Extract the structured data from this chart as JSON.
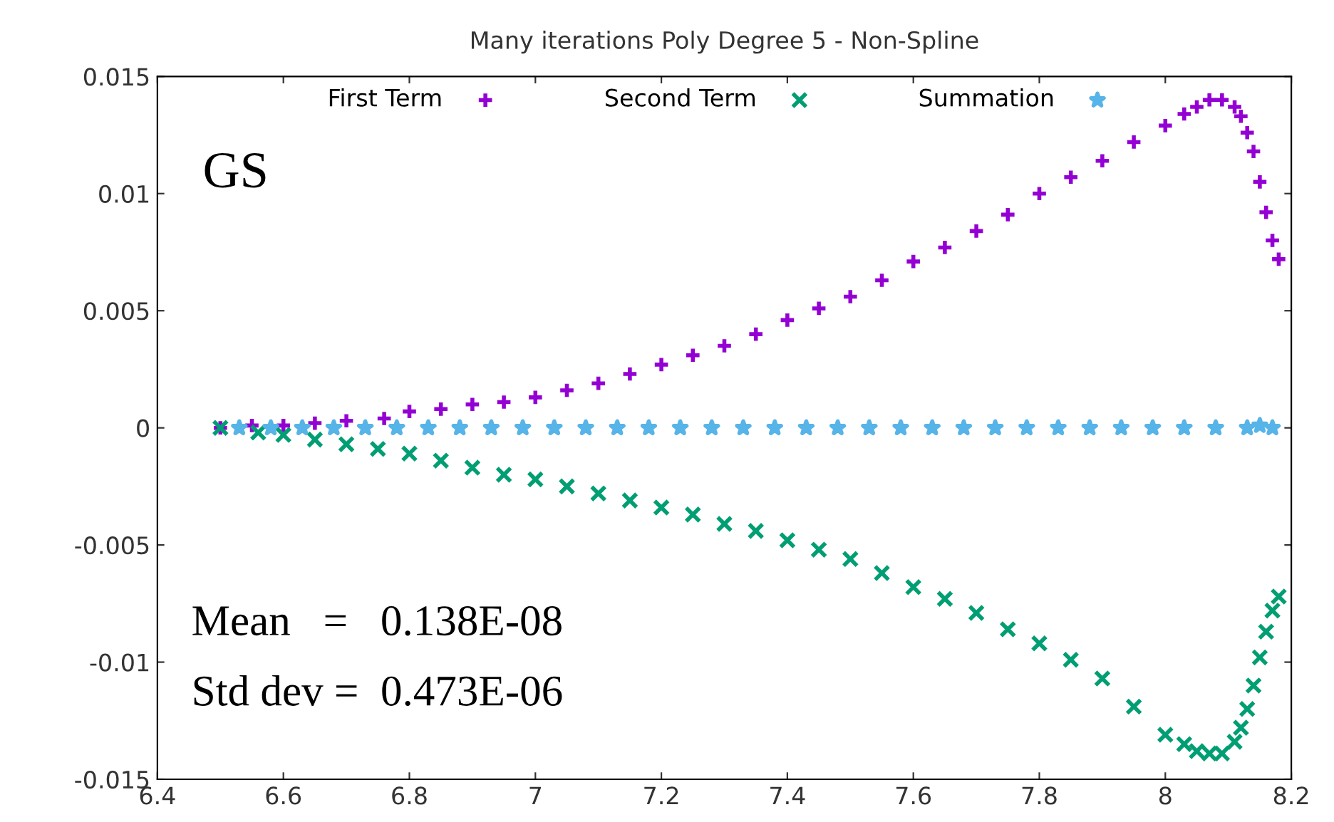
{
  "chart_data": {
    "type": "scatter",
    "title": "Many iterations Poly Degree 5 - Non-Spline",
    "series": [
      {
        "name": "First Term",
        "color": "#9400d3",
        "marker": "cross",
        "x": [
          6.5,
          6.55,
          6.6,
          6.65,
          6.7,
          6.76,
          6.8,
          6.85,
          6.9,
          6.95,
          7.0,
          7.05,
          7.1,
          7.15,
          7.2,
          7.25,
          7.3,
          7.35,
          7.4,
          7.45,
          7.5,
          7.55,
          7.6,
          7.65,
          7.7,
          7.75,
          7.8,
          7.85,
          7.9,
          7.95,
          8.0,
          8.03,
          8.05,
          8.07,
          8.09,
          8.11,
          8.12,
          8.13,
          8.14,
          8.15,
          8.16,
          8.17,
          8.18
        ],
        "values": [
          0,
          0.0001,
          0.0001,
          0.0002,
          0.0003,
          0.0004,
          0.0007,
          0.0008,
          0.001,
          0.0011,
          0.0013,
          0.0016,
          0.0019,
          0.0023,
          0.0027,
          0.0031,
          0.0035,
          0.004,
          0.0046,
          0.0051,
          0.0056,
          0.0063,
          0.0071,
          0.0077,
          0.0084,
          0.0091,
          0.01,
          0.0107,
          0.0114,
          0.0122,
          0.0129,
          0.0134,
          0.0137,
          0.014,
          0.014,
          0.0137,
          0.0133,
          0.0126,
          0.0118,
          0.0105,
          0.0092,
          0.008,
          0.0072
        ]
      },
      {
        "name": "Second Term",
        "color": "#009e73",
        "marker": "x",
        "x": [
          6.5,
          6.56,
          6.6,
          6.65,
          6.7,
          6.75,
          6.8,
          6.85,
          6.9,
          6.95,
          7.0,
          7.05,
          7.1,
          7.15,
          7.2,
          7.25,
          7.3,
          7.35,
          7.4,
          7.45,
          7.5,
          7.55,
          7.6,
          7.65,
          7.7,
          7.75,
          7.8,
          7.85,
          7.9,
          7.95,
          8.0,
          8.03,
          8.05,
          8.07,
          8.09,
          8.11,
          8.12,
          8.13,
          8.14,
          8.15,
          8.16,
          8.17,
          8.18
        ],
        "values": [
          0,
          -0.0002,
          -0.0003,
          -0.0005,
          -0.0007,
          -0.0009,
          -0.0011,
          -0.0014,
          -0.0017,
          -0.002,
          -0.0022,
          -0.0025,
          -0.0028,
          -0.0031,
          -0.0034,
          -0.0037,
          -0.0041,
          -0.0044,
          -0.0048,
          -0.0052,
          -0.0056,
          -0.0062,
          -0.0068,
          -0.0073,
          -0.0079,
          -0.0086,
          -0.0092,
          -0.0099,
          -0.0107,
          -0.0119,
          -0.0131,
          -0.0135,
          -0.0138,
          -0.0139,
          -0.0139,
          -0.0134,
          -0.0128,
          -0.012,
          -0.011,
          -0.0098,
          -0.0087,
          -0.0078,
          -0.0072
        ]
      },
      {
        "name": "Summation",
        "color": "#56b4e9",
        "marker": "star",
        "x": [
          6.53,
          6.58,
          6.63,
          6.68,
          6.73,
          6.78,
          6.83,
          6.88,
          6.93,
          6.98,
          7.03,
          7.08,
          7.13,
          7.18,
          7.23,
          7.28,
          7.33,
          7.38,
          7.43,
          7.48,
          7.53,
          7.58,
          7.63,
          7.68,
          7.73,
          7.78,
          7.83,
          7.88,
          7.93,
          7.98,
          8.03,
          8.08,
          8.13,
          8.15,
          8.17
        ],
        "values": [
          0,
          0,
          0,
          0,
          0,
          0,
          0,
          0,
          0,
          0,
          0,
          0,
          0,
          0,
          0,
          0,
          0,
          0,
          0,
          0,
          0,
          0,
          0,
          0,
          0,
          0,
          0,
          0,
          0,
          0,
          0,
          0,
          0,
          0.0001,
          0
        ]
      }
    ],
    "xlim": [
      6.4,
      8.2
    ],
    "xticks": [
      6.4,
      6.6,
      6.8,
      7,
      7.2,
      7.4,
      7.6,
      7.8,
      8,
      8.2
    ],
    "ylim": [
      -0.015,
      0.015
    ],
    "yticks": [
      -0.015,
      -0.01,
      -0.005,
      0,
      0.005,
      0.01,
      0.015
    ],
    "legend": "top",
    "annotations": [
      {
        "text": "GS"
      },
      {
        "text": "Mean   =   0.138E-08"
      },
      {
        "text": "Std dev =  0.473E-06"
      }
    ]
  }
}
